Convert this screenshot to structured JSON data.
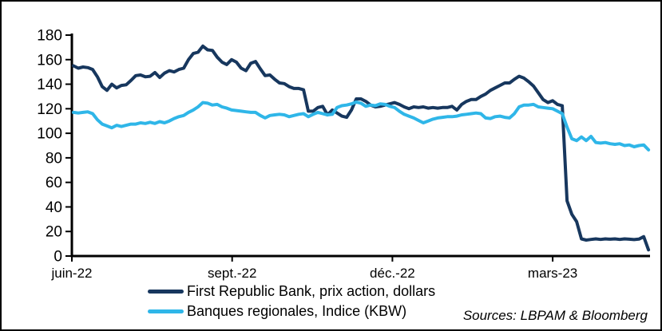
{
  "sources_label": "Sources: LBPAM & Bloomberg",
  "colors": {
    "axis": "#000000",
    "background": "#FFFFFF",
    "navy": "#17375E",
    "light_blue": "#2FB6E8"
  },
  "chart_data": {
    "type": "line",
    "title": "",
    "xlabel": "",
    "ylabel": "",
    "grid": false,
    "legend_position": "bottom-left",
    "x_axis": {
      "unit": "months since June 2022",
      "tick_labels": [
        "juin-22",
        "sept.-22",
        "déc.-22",
        "mars-23"
      ],
      "tick_months": [
        0,
        3,
        6,
        9
      ],
      "xlim_months": [
        0,
        10.85
      ]
    },
    "y_axis": {
      "ticks": [
        0,
        20,
        40,
        60,
        80,
        100,
        120,
        140,
        160,
        180
      ],
      "ylim": [
        0,
        180
      ]
    },
    "x_start_month": 0.03,
    "x_step_month": 0.0897,
    "series": [
      {
        "name": "First Republic Bank, prix action, dollars",
        "color": "#17375E",
        "values": [
          155,
          153,
          154,
          153.5,
          152,
          146,
          138,
          135,
          140,
          137,
          139,
          139.5,
          143,
          147,
          147.5,
          146,
          146.5,
          149.5,
          145.5,
          149,
          151,
          150,
          152,
          153,
          160,
          165,
          166,
          171,
          168,
          167.5,
          162,
          158,
          156,
          160,
          158,
          153,
          151,
          157,
          158.5,
          152.5,
          147,
          147.5,
          144,
          141,
          140.5,
          138,
          136.5,
          136.5,
          135.5,
          118,
          118,
          121,
          122,
          115,
          119,
          116.5,
          114,
          113,
          119,
          128,
          128,
          126,
          123,
          121.5,
          122,
          123,
          124,
          125,
          123.5,
          121.5,
          120,
          121.5,
          121,
          121.5,
          120.5,
          121,
          120.5,
          121,
          121,
          122,
          119,
          123.5,
          126,
          127.5,
          127.5,
          130,
          132,
          135,
          137,
          139,
          141,
          141,
          144,
          146.5,
          145,
          142,
          138.5,
          133,
          127.5,
          125,
          126.5,
          123.5,
          122.5,
          45,
          34,
          28,
          14,
          13,
          13.5,
          14,
          13.5,
          14,
          13.7,
          14,
          13.5,
          14,
          13.7,
          13.4,
          13.8,
          15.8,
          5
        ]
      },
      {
        "name": "Banques regionales, Indice (KBW)",
        "color": "#2FB6E8",
        "values": [
          117,
          116.5,
          117,
          117.5,
          116,
          111,
          107.5,
          106,
          104.5,
          106.5,
          105.5,
          106.5,
          107.5,
          107.5,
          108.5,
          108,
          109,
          108,
          109.5,
          108.5,
          110,
          112,
          113.5,
          114.5,
          117,
          119,
          121.5,
          125,
          124.5,
          123,
          123.5,
          121.5,
          120.5,
          119,
          118.5,
          118,
          117.5,
          117,
          117,
          114.5,
          112.5,
          114.5,
          115,
          115.5,
          115,
          113.5,
          114.5,
          115.5,
          116,
          113.5,
          115.5,
          117,
          116,
          115,
          115.5,
          121,
          122.5,
          123,
          124,
          125.5,
          124.5,
          122,
          123,
          122.5,
          124,
          123.5,
          122,
          121,
          118,
          115.5,
          114,
          112.5,
          110.5,
          108.5,
          110,
          111.5,
          112.5,
          113,
          113.5,
          113.5,
          114,
          115,
          115.5,
          116,
          116.5,
          116,
          112.5,
          112,
          113.5,
          114,
          113,
          112.5,
          116,
          121.5,
          123,
          123,
          123.5,
          121.5,
          121,
          120.5,
          120,
          118,
          116,
          105,
          95.5,
          94,
          97,
          94,
          97.5,
          92.5,
          92,
          92.5,
          91.5,
          91,
          91.5,
          90,
          90.5,
          89,
          90,
          90.5,
          86.5
        ]
      }
    ]
  }
}
